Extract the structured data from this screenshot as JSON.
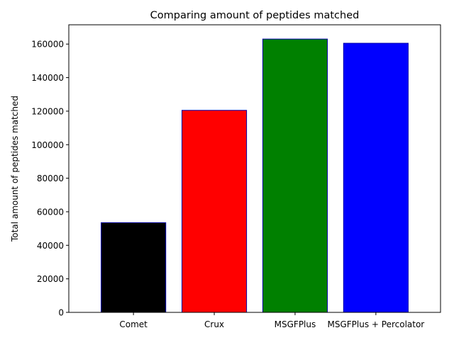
{
  "chart_data": {
    "type": "bar",
    "title": "Comparing amount of peptides matched",
    "xlabel": "",
    "ylabel": "Total amount of peptides matched",
    "categories": [
      "Comet",
      "Crux",
      "MSGFPlus",
      "MSGFPlus + Percolator"
    ],
    "values": [
      53500,
      120500,
      163000,
      160500
    ],
    "colors": [
      "#000000",
      "#ff0000",
      "#008000",
      "#0000ff"
    ],
    "edge_color": "#0000aa",
    "ylim": [
      0,
      171500
    ],
    "yticks": [
      0,
      20000,
      40000,
      60000,
      80000,
      100000,
      120000,
      140000,
      160000
    ],
    "grid": false,
    "legend": "none"
  }
}
